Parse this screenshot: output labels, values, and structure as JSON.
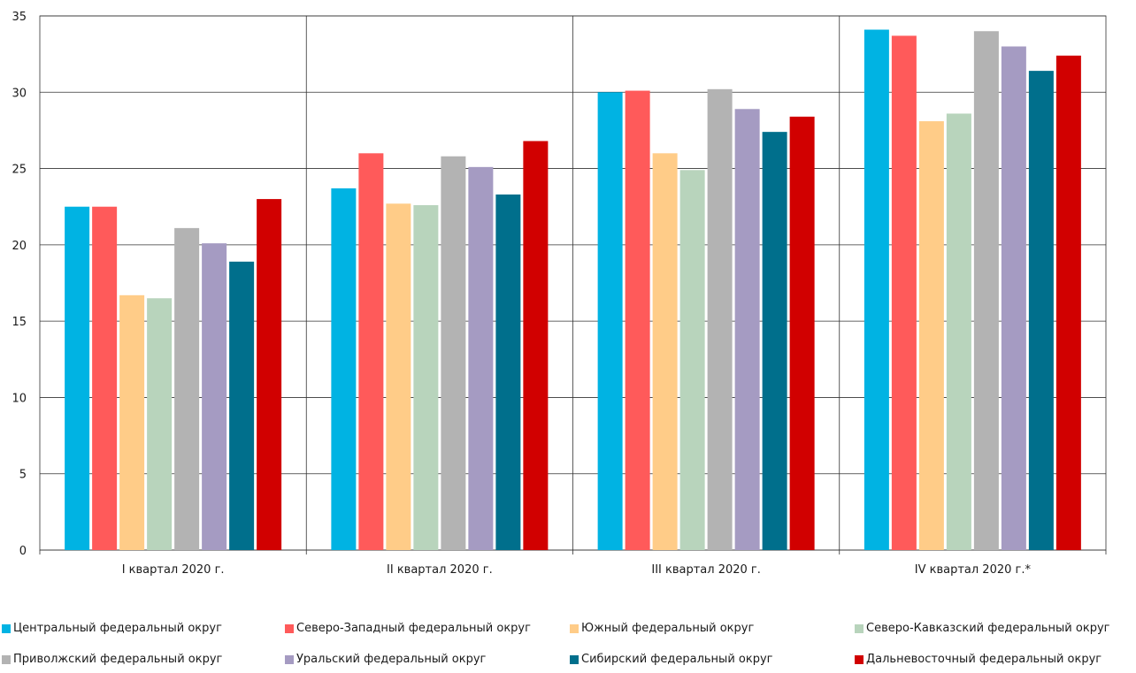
{
  "chart_data": {
    "type": "bar",
    "categories": [
      "I квартал 2020 г.",
      "II квартал 2020 г.",
      "III квартал 2020 г.",
      "IV квартал 2020 г.*"
    ],
    "ylim": [
      0,
      35
    ],
    "yticks": [
      0,
      5,
      10,
      15,
      20,
      25,
      30,
      35
    ],
    "grid": true,
    "legend_position": "bottom",
    "series": [
      {
        "name": "Центральный федеральный округ",
        "color": "#00b3e3",
        "values": [
          22.5,
          23.7,
          30.0,
          34.1
        ]
      },
      {
        "name": "Северо-Западный федеральный округ",
        "color": "#ff5a5a",
        "values": [
          22.5,
          26.0,
          30.1,
          33.7
        ]
      },
      {
        "name": "Южный федеральный округ",
        "color": "#ffcc88",
        "values": [
          16.7,
          22.7,
          26.0,
          28.1
        ]
      },
      {
        "name": "Северо-Кавказский федеральный округ",
        "color": "#b8d4bc",
        "values": [
          16.5,
          22.6,
          24.9,
          28.6
        ]
      },
      {
        "name": "Приволжский федеральный округ",
        "color": "#b3b3b3",
        "values": [
          21.1,
          25.8,
          30.2,
          34.0
        ]
      },
      {
        "name": "Уральский федеральный округ",
        "color": "#a59bc2",
        "values": [
          20.1,
          25.1,
          28.9,
          33.0
        ]
      },
      {
        "name": "Сибирский федеральный округ",
        "color": "#006f8c",
        "values": [
          18.9,
          23.3,
          27.4,
          31.4
        ]
      },
      {
        "name": "Дальневосточный федеральный округ",
        "color": "#d10000",
        "values": [
          23.0,
          26.8,
          28.4,
          32.4
        ]
      }
    ]
  }
}
